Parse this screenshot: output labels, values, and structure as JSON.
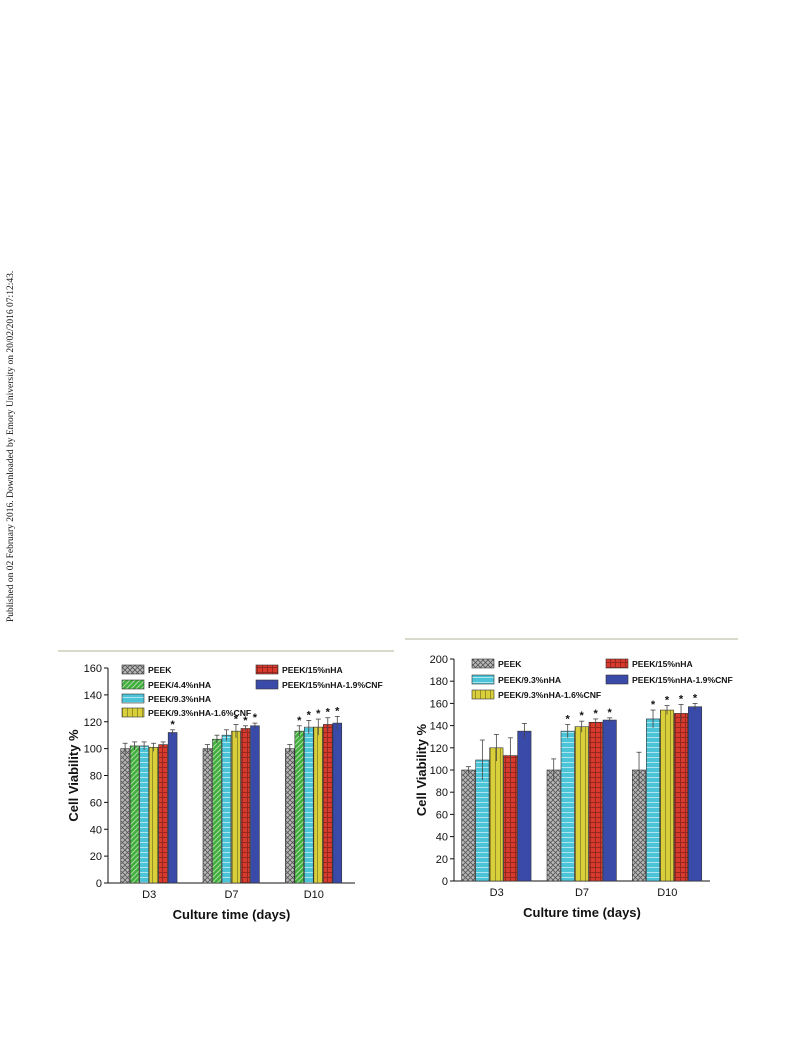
{
  "side_note": "Published on 02 February 2016. Downloaded by Emory University on 20/02/2016 07:12:43.",
  "chart_data": [
    {
      "type": "bar",
      "xlabel": "Culture time (days)",
      "ylabel": "Cell Viability %",
      "ylim": [
        0,
        160
      ],
      "yticks": [
        0,
        20,
        40,
        60,
        80,
        100,
        120,
        140,
        160
      ],
      "categories": [
        "D3",
        "D7",
        "D10"
      ],
      "legend_position": "top",
      "series": [
        {
          "name": "PEEK",
          "color": "#b8b8b8",
          "pattern": "crosshatch",
          "values": [
            100,
            100,
            100
          ],
          "errors": [
            4,
            3,
            3
          ],
          "significant": [
            false,
            false,
            false
          ]
        },
        {
          "name": "PEEK/4.4%nHA",
          "color": "#3fae3a",
          "pattern": "diagonal",
          "values": [
            102,
            107,
            113
          ],
          "errors": [
            3,
            3,
            4
          ],
          "significant": [
            false,
            false,
            true
          ]
        },
        {
          "name": "PEEK/9.3%nHA",
          "color": "#4cc4d8",
          "pattern": "horizontal",
          "values": [
            102,
            110,
            116
          ],
          "errors": [
            3,
            4,
            5
          ],
          "significant": [
            false,
            false,
            true
          ]
        },
        {
          "name": "PEEK/9.3%nHA-1.6%CNF",
          "color": "#d8cf3a",
          "pattern": "vertical",
          "values": [
            101,
            113,
            116
          ],
          "errors": [
            3,
            5,
            6
          ],
          "significant": [
            false,
            true,
            true
          ]
        },
        {
          "name": "PEEK/15%nHA",
          "color": "#d83a2e",
          "pattern": "grid",
          "values": [
            103,
            115,
            118
          ],
          "errors": [
            2,
            2,
            5
          ],
          "significant": [
            false,
            true,
            true
          ]
        },
        {
          "name": "PEEK/15%nHA-1.9%CNF",
          "color": "#3a4aa8",
          "pattern": "solid",
          "values": [
            112,
            117,
            119
          ],
          "errors": [
            2,
            2,
            5
          ],
          "significant": [
            true,
            true,
            true
          ]
        }
      ]
    },
    {
      "type": "bar",
      "xlabel": "Culture time (days)",
      "ylabel": "Cell Viability %",
      "ylim": [
        0,
        200
      ],
      "yticks": [
        0,
        20,
        40,
        60,
        80,
        100,
        120,
        140,
        160,
        180,
        200
      ],
      "categories": [
        "D3",
        "D7",
        "D10"
      ],
      "legend_position": "top",
      "series": [
        {
          "name": "PEEK",
          "color": "#b8b8b8",
          "pattern": "crosshatch",
          "values": [
            100,
            100,
            100
          ],
          "errors": [
            3,
            10,
            16
          ],
          "significant": [
            false,
            false,
            false
          ]
        },
        {
          "name": "PEEK/9.3%nHA",
          "color": "#4cc4d8",
          "pattern": "horizontal",
          "values": [
            109,
            135,
            146
          ],
          "errors": [
            18,
            6,
            8
          ],
          "significant": [
            false,
            true,
            true
          ]
        },
        {
          "name": "PEEK/9.3%nHA-1.6%CNF",
          "color": "#d8cf3a",
          "pattern": "vertical",
          "values": [
            120,
            139,
            154
          ],
          "errors": [
            12,
            5,
            4
          ],
          "significant": [
            false,
            true,
            true
          ]
        },
        {
          "name": "PEEK/15%nHA",
          "color": "#d83a2e",
          "pattern": "grid",
          "values": [
            113,
            143,
            151
          ],
          "errors": [
            16,
            3,
            8
          ],
          "significant": [
            false,
            true,
            true
          ]
        },
        {
          "name": "PEEK/15%nHA-1.9%CNF",
          "color": "#3a4aa8",
          "pattern": "solid",
          "values": [
            135,
            145,
            157
          ],
          "errors": [
            7,
            2,
            3
          ],
          "significant": [
            false,
            true,
            true
          ]
        }
      ]
    }
  ]
}
